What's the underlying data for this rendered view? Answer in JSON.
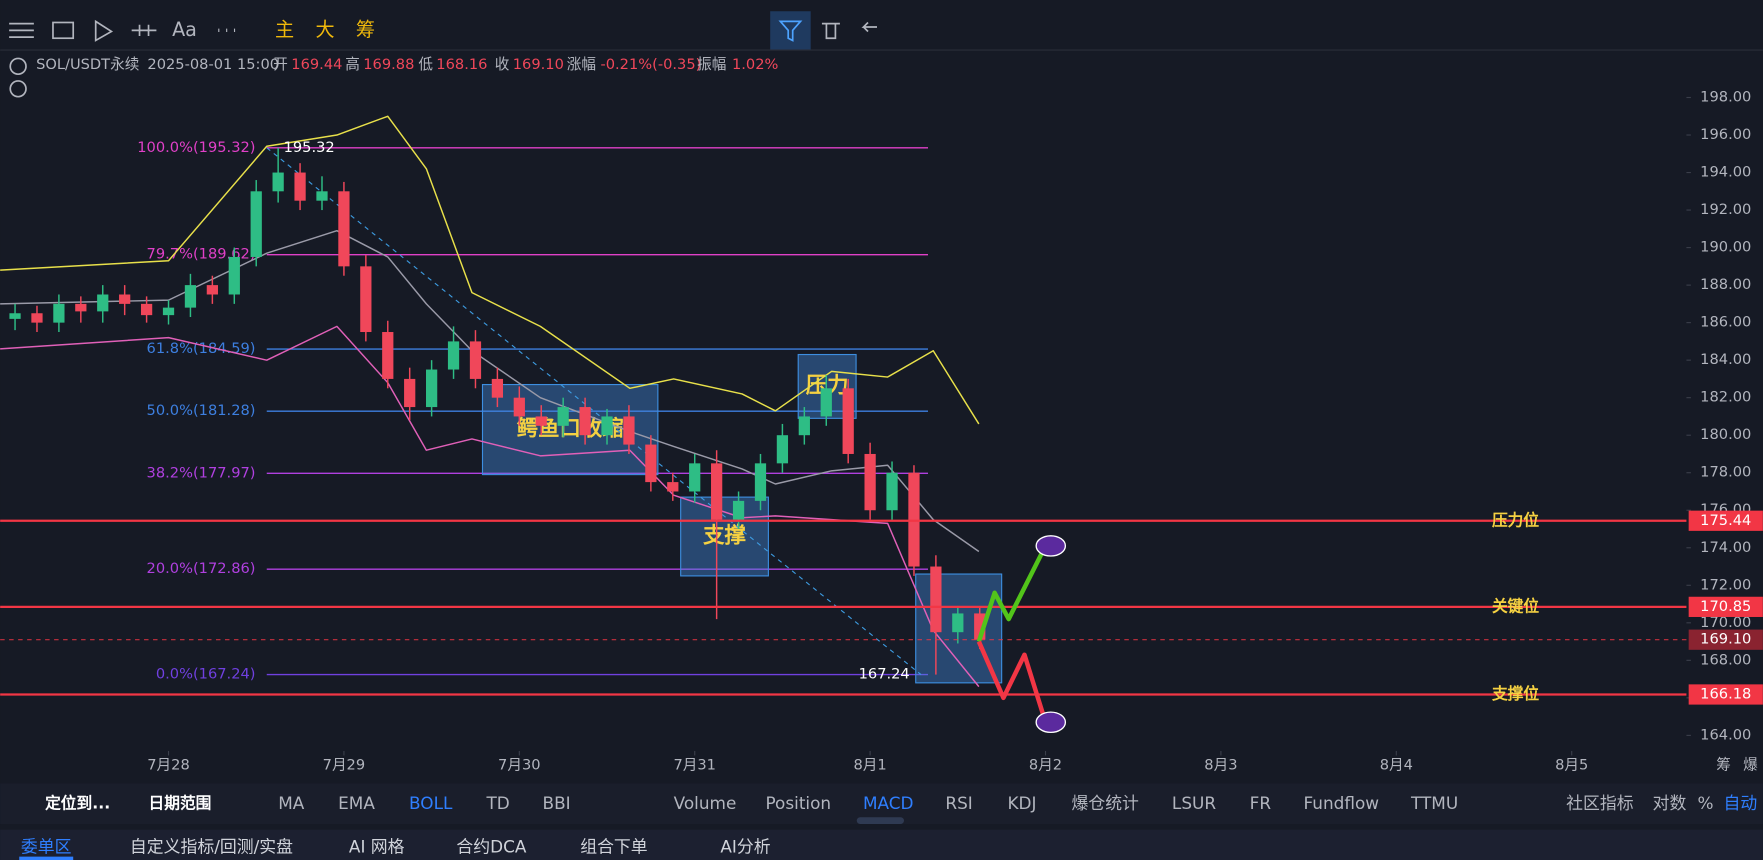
{
  "chart_data": {
    "type": "candlestick",
    "header": {
      "symbol": "SOL/USDT永续",
      "time": "2025-08-01 15:00",
      "items": [
        {
          "label": "开",
          "value": "169.44"
        },
        {
          "label": "高",
          "value": "169.88"
        },
        {
          "label": "低",
          "value": "168.16"
        },
        {
          "label": "收",
          "value": "169.10"
        },
        {
          "label": "涨幅",
          "value": "-0.21%(-0.35)"
        },
        {
          "label": "振幅",
          "value": "1.02%"
        }
      ]
    },
    "xlim": [
      -0.96,
      8.654
    ],
    "xticks": [
      {
        "value": 0,
        "label": "7月28"
      },
      {
        "value": 1,
        "label": "7月29"
      },
      {
        "value": 2,
        "label": "7月30"
      },
      {
        "value": 3,
        "label": "7月31"
      },
      {
        "value": 4,
        "label": "8月1"
      },
      {
        "value": 5,
        "label": "8月2"
      },
      {
        "value": 6,
        "label": "8月3"
      },
      {
        "value": 7,
        "label": "8月4"
      },
      {
        "value": 8,
        "label": "8月5"
      }
    ],
    "ylim": [
      163.17,
      200.8
    ],
    "yticks": [
      {
        "value": 164,
        "label": "164.00"
      },
      {
        "value": 166,
        "label": "166.00"
      },
      {
        "value": 168,
        "label": "168.00"
      },
      {
        "value": 170,
        "label": "170.00"
      },
      {
        "value": 172,
        "label": "172.00"
      },
      {
        "value": 174,
        "label": "174.00"
      },
      {
        "value": 176,
        "label": "176.00"
      },
      {
        "value": 178,
        "label": "178.00"
      },
      {
        "value": 180,
        "label": "180.00"
      },
      {
        "value": 182,
        "label": "182.00"
      },
      {
        "value": 184,
        "label": "184.00"
      },
      {
        "value": 186,
        "label": "186.00"
      },
      {
        "value": 188,
        "label": "188.00"
      },
      {
        "value": 190,
        "label": "190.00"
      },
      {
        "value": 192,
        "label": "192.00"
      },
      {
        "value": 194,
        "label": "194.00"
      },
      {
        "value": 196,
        "label": "196.00"
      },
      {
        "value": 198,
        "label": "198.00"
      }
    ],
    "up_color": "#2ebd85",
    "down_color": "#f0475a",
    "x": [
      -0.875,
      -0.75,
      -0.625,
      -0.5,
      -0.375,
      -0.25,
      -0.125,
      0,
      0.125,
      0.25,
      0.375,
      0.5,
      0.625,
      0.75,
      0.875,
      1,
      1.125,
      1.25,
      1.375,
      1.5,
      1.625,
      1.75,
      1.875,
      2,
      2.125,
      2.25,
      2.375,
      2.5,
      2.625,
      2.75,
      2.875,
      3,
      3.125,
      3.25,
      3.375,
      3.5,
      3.625,
      3.75,
      3.875,
      4,
      4.125,
      4.25,
      4.375,
      4.5,
      4.625
    ],
    "open": [
      186.2,
      186.5,
      186.0,
      187.0,
      186.6,
      187.5,
      187.0,
      186.4,
      186.8,
      188.0,
      187.5,
      189.5,
      193.0,
      194.0,
      192.5,
      193.0,
      189.0,
      185.5,
      183.0,
      181.5,
      183.5,
      185.0,
      183.0,
      182.0,
      181.0,
      180.5,
      181.5,
      180.0,
      181.0,
      179.5,
      177.5,
      177.0,
      178.5,
      175.5,
      176.5,
      178.5,
      180.0,
      181.0,
      182.5,
      179.0,
      176.0,
      178.0,
      173.0,
      169.5,
      170.5
    ],
    "high": [
      187.0,
      186.9,
      187.5,
      187.4,
      188.0,
      188.0,
      187.4,
      187.2,
      188.6,
      188.5,
      190.0,
      193.6,
      195.32,
      194.5,
      193.8,
      193.5,
      189.6,
      186.1,
      183.6,
      184.0,
      185.8,
      185.6,
      183.6,
      182.6,
      181.6,
      182.0,
      182.0,
      181.4,
      181.6,
      180.0,
      178.0,
      179.0,
      179.2,
      177.0,
      179.0,
      180.6,
      181.5,
      183.2,
      183.0,
      179.6,
      178.6,
      178.4,
      173.6,
      170.9,
      170.8
    ],
    "low": [
      185.6,
      185.5,
      185.5,
      186.0,
      186.0,
      186.4,
      186.0,
      185.9,
      186.3,
      187.0,
      187.0,
      189.0,
      192.4,
      192.0,
      192.0,
      188.5,
      185.0,
      182.5,
      180.8,
      181.0,
      183.0,
      182.5,
      181.5,
      180.5,
      180.0,
      179.9,
      179.5,
      179.5,
      179.0,
      177.0,
      176.5,
      176.4,
      170.2,
      175.0,
      176.0,
      178.0,
      179.5,
      180.5,
      178.5,
      175.5,
      175.5,
      172.5,
      167.24,
      168.9,
      168.6
    ],
    "close": [
      186.5,
      186.0,
      187.0,
      186.6,
      187.5,
      187.0,
      186.4,
      186.8,
      188.0,
      187.5,
      189.5,
      193.0,
      194.0,
      192.5,
      193.0,
      189.0,
      185.5,
      183.0,
      181.5,
      183.5,
      185.0,
      183.0,
      182.0,
      181.0,
      180.5,
      181.5,
      180.0,
      181.0,
      179.5,
      177.5,
      177.0,
      178.5,
      175.5,
      176.5,
      178.5,
      180.0,
      181.0,
      182.5,
      179.0,
      176.0,
      178.0,
      173.0,
      169.5,
      170.5,
      169.1
    ],
    "bands_x": [
      -0.96,
      0,
      0.56,
      0.96,
      1.25,
      1.47,
      1.73,
      2.12,
      2.63,
      2.88,
      3.27,
      3.46,
      3.78,
      4.1,
      4.36,
      4.62
    ],
    "bands": [
      {
        "color": "#e8e04a",
        "values": [
          188.8,
          189.3,
          195.4,
          196,
          197,
          194.2,
          187.6,
          185.8,
          182.5,
          183,
          182.2,
          181.3,
          183.4,
          183.1,
          184.5,
          180.6
        ]
      },
      {
        "color": "#9a9aa8",
        "values": [
          187.0,
          187.2,
          189.7,
          190.9,
          189.5,
          187,
          184.5,
          182.0,
          180.2,
          179.4,
          178.2,
          177.4,
          178.1,
          178.4,
          175.5,
          173.8
        ]
      },
      {
        "color": "#e060b8",
        "values": [
          184.6,
          185.2,
          184,
          185.8,
          182.8,
          179.2,
          179.8,
          178.9,
          179.2,
          176.8,
          175.6,
          175.7,
          175.5,
          175.3,
          169.6,
          166.6
        ]
      }
    ],
    "fib": {
      "x": [
        0.56,
        4.33
      ],
      "levels": [
        {
          "label": "100.0%(195.32)",
          "value": 195.32,
          "color": "#e040c8"
        },
        {
          "label": "79.7%(189.62)",
          "value": 189.62,
          "color": "#e040c8"
        },
        {
          "label": "61.8%(184.59)",
          "value": 184.59,
          "color": "#3d7fe0"
        },
        {
          "label": "50.0%(181.28)",
          "value": 181.28,
          "color": "#3d7fe0"
        },
        {
          "label": "38.2%(177.97)",
          "value": 177.97,
          "color": "#b040e0"
        },
        {
          "label": "20.0%(172.86)",
          "value": 172.86,
          "color": "#b040e0"
        },
        {
          "label": "0.0%(167.24)",
          "value": 167.24,
          "color": "#7040e0"
        }
      ]
    },
    "extremes": [
      {
        "x": 0.56,
        "value": 195.32
      },
      {
        "x": 4.29,
        "value": 167.24
      }
    ],
    "boxes": [
      {
        "label": "鳄鱼口收缩",
        "x": [
          1.79,
          2.79
        ],
        "y": [
          182.7,
          177.9
        ]
      },
      {
        "label": "支撑",
        "x": [
          2.92,
          3.42
        ],
        "y": [
          176.7,
          172.5
        ]
      },
      {
        "label": "压力",
        "x": [
          3.59,
          3.92
        ],
        "y": [
          184.3,
          180.9
        ]
      },
      {
        "x": [
          4.26,
          4.75
        ],
        "y": [
          172.6,
          166.8
        ]
      }
    ],
    "price_lines": [
      {
        "name": "压力位",
        "value": 175.44,
        "color": "#f23645"
      },
      {
        "name": "关键位",
        "value": 170.85,
        "color": "#f23645"
      },
      {
        "name": "支撑位",
        "value": 166.18,
        "color": "#f23645"
      }
    ],
    "last_price": {
      "value": 169.1,
      "label": "169.10",
      "color": "#f23645"
    },
    "projections": [
      {
        "color": "#52c41a",
        "x": [
          4.62,
          4.71,
          4.79,
          5.0
        ],
        "values": [
          169.0,
          171.6,
          170.2,
          174.1
        ]
      },
      {
        "color": "#f23645",
        "x": [
          4.62,
          4.76,
          4.88,
          5.0
        ],
        "values": [
          169.0,
          166.0,
          168.3,
          164.7
        ]
      }
    ],
    "targets": [
      {
        "x": 5.03,
        "value": 174.1
      },
      {
        "x": 5.03,
        "value": 164.7
      }
    ],
    "axis_corner": [
      "筹",
      "爆"
    ]
  },
  "ui": {
    "toolbar": [
      "Aa",
      "主",
      "大",
      "筹"
    ],
    "locate": "定位到...",
    "date_range": "日期范围",
    "main_indicators": [
      {
        "label": "MA"
      },
      {
        "label": "EMA"
      },
      {
        "label": "BOLL",
        "active": true
      },
      {
        "label": "TD"
      },
      {
        "label": "BBI"
      }
    ],
    "sub_indicators": [
      {
        "label": "Volume"
      },
      {
        "label": "Position"
      },
      {
        "label": "MACD",
        "active": true
      },
      {
        "label": "RSI"
      },
      {
        "label": "KDJ"
      },
      {
        "label": "爆仓统计"
      },
      {
        "label": "LSUR"
      },
      {
        "label": "FR"
      },
      {
        "label": "Fundflow"
      },
      {
        "label": "TTMU"
      }
    ],
    "right_controls": [
      {
        "label": "社区指标"
      },
      {
        "label": "对数"
      },
      {
        "label": "%"
      },
      {
        "label": "自动",
        "active": true
      }
    ],
    "tabs": [
      {
        "label": "委单区",
        "active": true
      },
      {
        "label": "自定义指标/回测/实盘"
      },
      {
        "label": "AI 网格"
      },
      {
        "label": "合约DCA"
      },
      {
        "label": "组合下单"
      },
      {
        "label": "AI分析"
      }
    ]
  }
}
